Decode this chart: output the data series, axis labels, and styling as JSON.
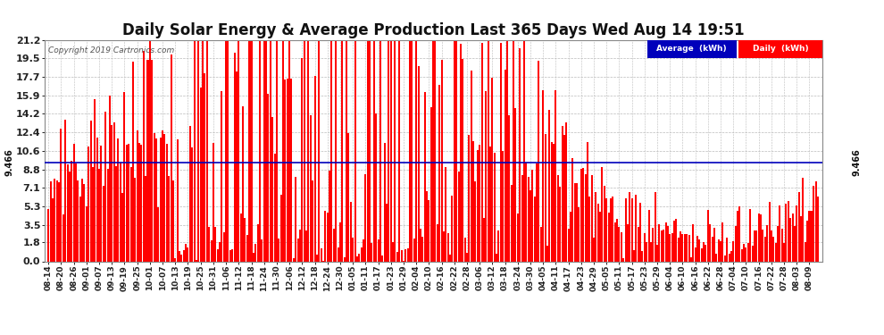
{
  "title": "Daily Solar Energy & Average Production Last 365 Days Wed Aug 14 19:51",
  "copyright": "Copyright 2019 Cartronics.com",
  "average_value": 9.466,
  "y_ticks": [
    0.0,
    1.8,
    3.5,
    5.3,
    7.1,
    8.8,
    10.6,
    12.4,
    14.2,
    15.9,
    17.7,
    19.5,
    21.2
  ],
  "ylim": [
    0.0,
    21.2
  ],
  "bar_color": "#ff0000",
  "avg_line_color": "#0000bb",
  "background_color": "#ffffff",
  "grid_color": "#bbbbbb",
  "legend_avg_bg": "#0000bb",
  "legend_daily_bg": "#ff0000",
  "x_labels": [
    "08-14",
    "08-20",
    "08-26",
    "09-01",
    "09-07",
    "09-13",
    "09-19",
    "09-25",
    "10-01",
    "10-07",
    "10-13",
    "10-19",
    "10-25",
    "10-31",
    "11-06",
    "11-12",
    "11-18",
    "11-24",
    "11-30",
    "12-06",
    "12-12",
    "12-18",
    "12-24",
    "12-30",
    "01-05",
    "01-11",
    "01-17",
    "01-23",
    "01-29",
    "02-04",
    "02-10",
    "02-16",
    "02-22",
    "02-28",
    "03-06",
    "03-12",
    "03-18",
    "03-24",
    "03-30",
    "04-05",
    "04-11",
    "04-17",
    "04-23",
    "04-29",
    "05-05",
    "05-11",
    "05-17",
    "05-23",
    "05-29",
    "06-04",
    "06-10",
    "06-16",
    "06-22",
    "06-28",
    "07-04",
    "07-10",
    "07-16",
    "07-22",
    "07-28",
    "08-03",
    "08-09"
  ],
  "num_bars": 365,
  "title_fontsize": 12,
  "tick_fontsize": 8,
  "seed": 42
}
